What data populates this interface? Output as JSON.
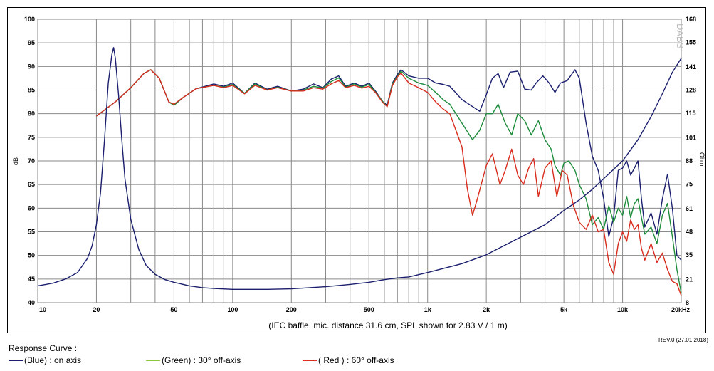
{
  "chart_data": {
    "type": "line",
    "caption": "(IEC baffle, mic. distance 31.6 cm, SPL shown for 2.83 V / 1 m)",
    "ylabel_left": "dB",
    "ylabel_right": "Ohm",
    "watermark": "DABS",
    "x_scale": "log",
    "xlim": [
      10,
      20000
    ],
    "ylim_left": [
      40,
      100
    ],
    "ylim_right": [
      8,
      168
    ],
    "x_ticks": [
      {
        "v": 10,
        "t": "10"
      },
      {
        "v": 20,
        "t": "20"
      },
      {
        "v": 50,
        "t": "50"
      },
      {
        "v": 100,
        "t": "100"
      },
      {
        "v": 200,
        "t": "200"
      },
      {
        "v": 500,
        "t": "500"
      },
      {
        "v": 1000,
        "t": "1k"
      },
      {
        "v": 2000,
        "t": "2k"
      },
      {
        "v": 5000,
        "t": "5k"
      },
      {
        "v": 10000,
        "t": "10k"
      },
      {
        "v": 20000,
        "t": "20kHz"
      }
    ],
    "y_ticks_left": [
      40,
      45,
      50,
      55,
      60,
      65,
      70,
      75,
      80,
      85,
      90,
      95,
      100
    ],
    "y_ticks_right": [
      8,
      21,
      35,
      48,
      61,
      75,
      88,
      101,
      115,
      128,
      141,
      155,
      168
    ],
    "grid": true,
    "series": [
      {
        "name": "on axis",
        "color_label": "Blue",
        "color": "#1a1f6e",
        "axis": "left",
        "points": [
          [
            20,
            79.5
          ],
          [
            25,
            82.5
          ],
          [
            30,
            85.5
          ],
          [
            35,
            88.5
          ],
          [
            38,
            89.3
          ],
          [
            42,
            87.5
          ],
          [
            47,
            82.5
          ],
          [
            50,
            81.8
          ],
          [
            56,
            83.5
          ],
          [
            65,
            85.3
          ],
          [
            80,
            86.3
          ],
          [
            90,
            85.8
          ],
          [
            100,
            86.5
          ],
          [
            115,
            84.3
          ],
          [
            130,
            86.5
          ],
          [
            150,
            85.2
          ],
          [
            170,
            85.8
          ],
          [
            200,
            84.8
          ],
          [
            230,
            85.2
          ],
          [
            260,
            86.3
          ],
          [
            290,
            85.5
          ],
          [
            320,
            87.3
          ],
          [
            350,
            88.0
          ],
          [
            380,
            85.8
          ],
          [
            420,
            86.5
          ],
          [
            460,
            85.8
          ],
          [
            500,
            86.5
          ],
          [
            540,
            84.8
          ],
          [
            590,
            82.5
          ],
          [
            620,
            81.8
          ],
          [
            660,
            86.5
          ],
          [
            700,
            88.3
          ],
          [
            730,
            89.3
          ],
          [
            800,
            88.0
          ],
          [
            900,
            87.5
          ],
          [
            1000,
            87.5
          ],
          [
            1100,
            86.5
          ],
          [
            1200,
            86.2
          ],
          [
            1300,
            85.8
          ],
          [
            1500,
            83.0
          ],
          [
            1700,
            81.5
          ],
          [
            1850,
            80.5
          ],
          [
            2000,
            84.0
          ],
          [
            2150,
            87.5
          ],
          [
            2300,
            88.5
          ],
          [
            2450,
            85.5
          ],
          [
            2650,
            88.8
          ],
          [
            2900,
            89.0
          ],
          [
            3150,
            85.2
          ],
          [
            3400,
            85.0
          ],
          [
            3600,
            86.5
          ],
          [
            3900,
            88.0
          ],
          [
            4200,
            86.5
          ],
          [
            4500,
            84.5
          ],
          [
            4800,
            86.5
          ],
          [
            5200,
            87.0
          ],
          [
            5700,
            89.3
          ],
          [
            6000,
            87.5
          ],
          [
            6500,
            78.0
          ],
          [
            7000,
            71.0
          ],
          [
            7500,
            68.0
          ],
          [
            8000,
            62.0
          ],
          [
            8500,
            54.0
          ],
          [
            9000,
            58.0
          ],
          [
            9500,
            68.0
          ],
          [
            10000,
            68.5
          ],
          [
            10500,
            70.0
          ],
          [
            11000,
            67.0
          ],
          [
            11500,
            68.5
          ],
          [
            12000,
            70.0
          ],
          [
            12500,
            62.0
          ],
          [
            13000,
            56.0
          ],
          [
            14000,
            59.0
          ],
          [
            15000,
            54.5
          ],
          [
            16000,
            62.0
          ],
          [
            17000,
            67.2
          ],
          [
            18000,
            60.0
          ],
          [
            19000,
            50.0
          ],
          [
            20000,
            49.0
          ]
        ]
      },
      {
        "name": "30° off-axis",
        "color_label": "Green",
        "color": "#1c8c3a",
        "axis": "left",
        "points": [
          [
            20,
            79.5
          ],
          [
            25,
            82.5
          ],
          [
            30,
            85.5
          ],
          [
            35,
            88.5
          ],
          [
            38,
            89.3
          ],
          [
            42,
            87.5
          ],
          [
            47,
            82.5
          ],
          [
            50,
            81.8
          ],
          [
            56,
            83.5
          ],
          [
            65,
            85.3
          ],
          [
            80,
            86.0
          ],
          [
            90,
            85.6
          ],
          [
            100,
            86.2
          ],
          [
            115,
            84.3
          ],
          [
            130,
            86.3
          ],
          [
            150,
            85.0
          ],
          [
            170,
            85.6
          ],
          [
            200,
            84.8
          ],
          [
            230,
            85.0
          ],
          [
            260,
            85.8
          ],
          [
            290,
            85.4
          ],
          [
            320,
            86.8
          ],
          [
            350,
            87.6
          ],
          [
            380,
            85.6
          ],
          [
            420,
            86.3
          ],
          [
            460,
            85.6
          ],
          [
            500,
            86.2
          ],
          [
            540,
            84.6
          ],
          [
            590,
            82.5
          ],
          [
            620,
            81.5
          ],
          [
            660,
            86.3
          ],
          [
            700,
            88.0
          ],
          [
            730,
            89.0
          ],
          [
            800,
            87.5
          ],
          [
            900,
            86.5
          ],
          [
            1000,
            86.0
          ],
          [
            1100,
            84.5
          ],
          [
            1200,
            83.0
          ],
          [
            1300,
            82.0
          ],
          [
            1500,
            78.0
          ],
          [
            1700,
            74.5
          ],
          [
            1850,
            76.5
          ],
          [
            2000,
            80.0
          ],
          [
            2150,
            80.0
          ],
          [
            2300,
            82.0
          ],
          [
            2500,
            78.0
          ],
          [
            2700,
            75.5
          ],
          [
            2900,
            80.0
          ],
          [
            3150,
            78.5
          ],
          [
            3400,
            75.5
          ],
          [
            3700,
            78.5
          ],
          [
            4000,
            74.5
          ],
          [
            4300,
            72.5
          ],
          [
            4500,
            69.0
          ],
          [
            4800,
            67.0
          ],
          [
            5000,
            69.5
          ],
          [
            5300,
            70.0
          ],
          [
            5700,
            68.0
          ],
          [
            6000,
            65.0
          ],
          [
            6500,
            62.0
          ],
          [
            7000,
            56.5
          ],
          [
            7500,
            58.0
          ],
          [
            8000,
            55.5
          ],
          [
            8500,
            60.5
          ],
          [
            9000,
            57.0
          ],
          [
            9500,
            60.0
          ],
          [
            10000,
            58.5
          ],
          [
            10500,
            62.5
          ],
          [
            11000,
            58.0
          ],
          [
            11500,
            61.0
          ],
          [
            12000,
            62.0
          ],
          [
            12500,
            58.0
          ],
          [
            13000,
            54.5
          ],
          [
            14000,
            56.0
          ],
          [
            15000,
            52.5
          ],
          [
            16000,
            58.5
          ],
          [
            17000,
            61.0
          ],
          [
            18000,
            54.0
          ],
          [
            19000,
            47.0
          ],
          [
            20000,
            42.0
          ]
        ]
      },
      {
        "name": "60° off-axis",
        "color_label": "Red",
        "color": "#d82b1c",
        "axis": "left",
        "points": [
          [
            20,
            79.5
          ],
          [
            25,
            82.5
          ],
          [
            30,
            85.5
          ],
          [
            35,
            88.5
          ],
          [
            38,
            89.3
          ],
          [
            42,
            87.5
          ],
          [
            47,
            82.5
          ],
          [
            50,
            82.0
          ],
          [
            56,
            83.5
          ],
          [
            65,
            85.3
          ],
          [
            80,
            86.0
          ],
          [
            90,
            85.5
          ],
          [
            100,
            86.0
          ],
          [
            115,
            84.2
          ],
          [
            130,
            86.0
          ],
          [
            150,
            85.0
          ],
          [
            170,
            85.5
          ],
          [
            200,
            84.8
          ],
          [
            230,
            84.8
          ],
          [
            260,
            85.5
          ],
          [
            290,
            85.2
          ],
          [
            320,
            86.3
          ],
          [
            350,
            87.0
          ],
          [
            380,
            85.5
          ],
          [
            420,
            86.0
          ],
          [
            460,
            85.4
          ],
          [
            500,
            85.8
          ],
          [
            540,
            84.5
          ],
          [
            590,
            82.3
          ],
          [
            620,
            81.5
          ],
          [
            660,
            86.0
          ],
          [
            700,
            87.8
          ],
          [
            730,
            88.6
          ],
          [
            800,
            86.5
          ],
          [
            900,
            85.5
          ],
          [
            1000,
            84.5
          ],
          [
            1100,
            82.5
          ],
          [
            1200,
            81.0
          ],
          [
            1300,
            80.0
          ],
          [
            1500,
            73.0
          ],
          [
            1600,
            64.0
          ],
          [
            1700,
            58.5
          ],
          [
            1800,
            62.0
          ],
          [
            2000,
            69.0
          ],
          [
            2150,
            71.5
          ],
          [
            2350,
            65.0
          ],
          [
            2500,
            68.0
          ],
          [
            2700,
            72.5
          ],
          [
            2900,
            67.0
          ],
          [
            3100,
            65.0
          ],
          [
            3300,
            68.5
          ],
          [
            3500,
            70.5
          ],
          [
            3700,
            62.5
          ],
          [
            4000,
            68.5
          ],
          [
            4300,
            70.0
          ],
          [
            4600,
            62.5
          ],
          [
            4900,
            68.0
          ],
          [
            5200,
            67.0
          ],
          [
            5600,
            60.5
          ],
          [
            6000,
            57.0
          ],
          [
            6500,
            55.5
          ],
          [
            7000,
            58.5
          ],
          [
            7500,
            55.0
          ],
          [
            8000,
            55.5
          ],
          [
            8500,
            48.5
          ],
          [
            9000,
            46.0
          ],
          [
            9500,
            52.5
          ],
          [
            10000,
            55.0
          ],
          [
            10500,
            53.0
          ],
          [
            11000,
            57.5
          ],
          [
            11500,
            55.5
          ],
          [
            12000,
            56.5
          ],
          [
            12500,
            51.5
          ],
          [
            13000,
            49.0
          ],
          [
            14000,
            52.5
          ],
          [
            15000,
            48.5
          ],
          [
            16000,
            50.5
          ],
          [
            17000,
            47.0
          ],
          [
            18000,
            44.5
          ],
          [
            19000,
            44.0
          ],
          [
            20000,
            41.5
          ]
        ]
      },
      {
        "name": "Impedance",
        "color": "#1a1f6e",
        "axis": "right",
        "points": [
          [
            10,
            17.5
          ],
          [
            12,
            19.0
          ],
          [
            14,
            21.5
          ],
          [
            16,
            25.0
          ],
          [
            18,
            33.0
          ],
          [
            19,
            40.0
          ],
          [
            20,
            52.0
          ],
          [
            21,
            70.0
          ],
          [
            22,
            100.0
          ],
          [
            23,
            132.0
          ],
          [
            24,
            148.0
          ],
          [
            24.5,
            152.0
          ],
          [
            25,
            146.0
          ],
          [
            26,
            125.0
          ],
          [
            27,
            100.0
          ],
          [
            28,
            78.0
          ],
          [
            30,
            55.0
          ],
          [
            33,
            38.0
          ],
          [
            36,
            29.0
          ],
          [
            40,
            24.0
          ],
          [
            45,
            21.0
          ],
          [
            50,
            19.5
          ],
          [
            60,
            17.5
          ],
          [
            70,
            16.5
          ],
          [
            80,
            16.0
          ],
          [
            100,
            15.5
          ],
          [
            150,
            15.5
          ],
          [
            200,
            15.8
          ],
          [
            300,
            17.0
          ],
          [
            400,
            18.3
          ],
          [
            500,
            19.5
          ],
          [
            600,
            21.0
          ],
          [
            700,
            22.0
          ],
          [
            800,
            22.5
          ],
          [
            1000,
            25.0
          ],
          [
            1500,
            30.0
          ],
          [
            2000,
            35.0
          ],
          [
            3000,
            45.0
          ],
          [
            4000,
            52.0
          ],
          [
            5000,
            60.0
          ],
          [
            6000,
            66.0
          ],
          [
            7000,
            72.0
          ],
          [
            8000,
            78.0
          ],
          [
            10000,
            88.0
          ],
          [
            12000,
            100.0
          ],
          [
            14000,
            113.0
          ],
          [
            16000,
            126.0
          ],
          [
            18000,
            138.0
          ],
          [
            20000,
            146.0
          ]
        ]
      }
    ]
  },
  "footer": {
    "response_curve_label": "Response Curve :",
    "rev": "REV.0 (27.01.2018)",
    "legend": [
      {
        "name": "blue",
        "text": "(Blue)  : on axis",
        "color": "#1a1f6e"
      },
      {
        "name": "green",
        "text": "(Green) : 30° off-axis",
        "color": "#8fc63f"
      },
      {
        "name": "red",
        "text": "( Red ) : 60° off-axis",
        "color": "#d82b1c"
      }
    ]
  }
}
